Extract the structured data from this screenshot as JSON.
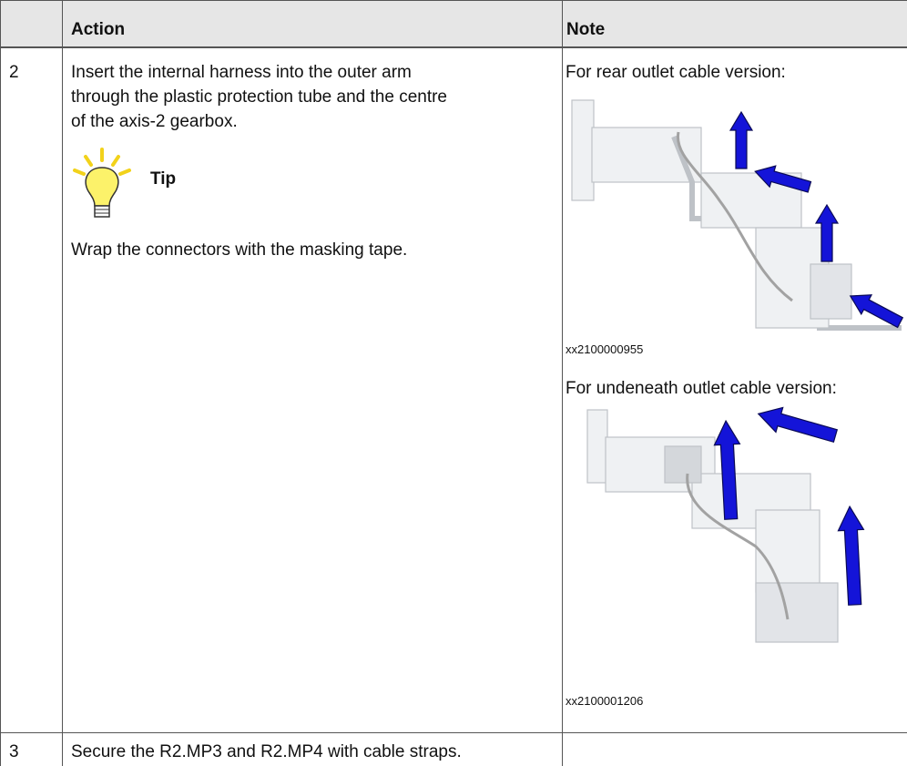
{
  "table": {
    "header": {
      "action": "Action",
      "note": "Note"
    },
    "rows": [
      {
        "step": "2",
        "action": [
          "Insert the internal harness into the outer arm",
          "through the plastic protection tube and the centre",
          "of the axis-2 gearbox."
        ],
        "tip": {
          "title": "Tip",
          "text": "Wrap the connectors with the masking tape."
        },
        "notes": [
          {
            "caption": "For rear outlet cable version:",
            "image_id": "xx2100000955"
          },
          {
            "caption": "For undeneath outlet cable version:",
            "image_id": "xx2100001206"
          }
        ]
      },
      {
        "step": "3",
        "action": [
          "Secure the R2.MP3 and R2.MP4 with cable straps."
        ]
      }
    ]
  }
}
